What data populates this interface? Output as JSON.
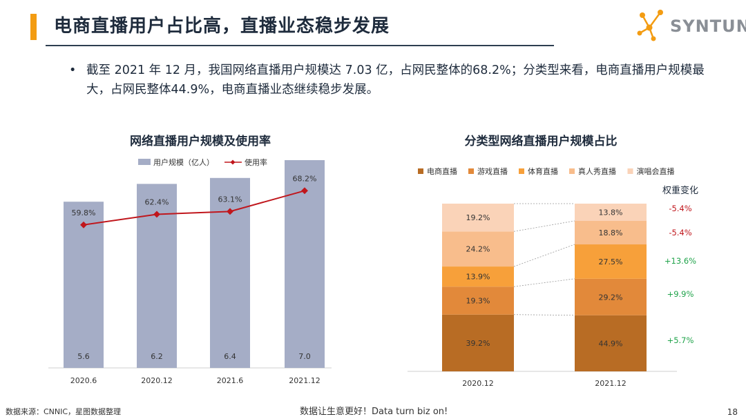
{
  "header": {
    "title": "电商直播用户占比高，直播业态稳步发展",
    "logo_text": "SYNTUN",
    "accent_color": "#f39c12"
  },
  "bullet": {
    "marker": "•",
    "text": "截至 2021 年 12 月，我国网络直播用户规模达 7.03 亿，占网民整体的68.2%；分类型来看，电商直播用户规模最大，占网民整体44.9%，电商直播业态继续稳步发展。"
  },
  "footer": {
    "source": "数据来源：CNNIC，星图数据整理",
    "slogan": "数据让生意更好！Data turn biz on!",
    "page_number": "18"
  },
  "chart_data": [
    {
      "type": "bar",
      "title": "网络直播用户规模及使用率",
      "categories": [
        "2020.6",
        "2020.12",
        "2021.6",
        "2021.12"
      ],
      "series": [
        {
          "name": "用户规模（亿人）",
          "kind": "bar",
          "values": [
            5.6,
            6.2,
            6.4,
            7.0
          ],
          "labels": [
            "5.6",
            "6.2",
            "6.4",
            "7.0"
          ],
          "color": "#a5adc6"
        },
        {
          "name": "使用率",
          "kind": "line",
          "values": [
            59.8,
            62.4,
            63.1,
            68.2
          ],
          "labels": [
            "59.8%",
            "62.4%",
            "63.1%",
            "68.2%"
          ],
          "color": "#c0161c"
        }
      ],
      "legend_position": "top"
    },
    {
      "type": "bar",
      "stacked": true,
      "title": "分类型网络直播用户规模占比",
      "categories": [
        "2020.12",
        "2021.12"
      ],
      "series": [
        {
          "name": "电商直播",
          "values": [
            39.2,
            44.9
          ],
          "labels": [
            "39.2%",
            "44.9%"
          ],
          "color": "#b86c24"
        },
        {
          "name": "游戏直播",
          "values": [
            19.3,
            29.2
          ],
          "labels": [
            "19.3%",
            "29.2%"
          ],
          "color": "#e2893a"
        },
        {
          "name": "体育直播",
          "values": [
            13.9,
            27.5
          ],
          "labels": [
            "13.9%",
            "27.5%"
          ],
          "color": "#f7a03a"
        },
        {
          "name": "真人秀直播",
          "values": [
            24.2,
            18.8
          ],
          "labels": [
            "24.2%",
            "18.8%"
          ],
          "color": "#f8bd8c"
        },
        {
          "name": "演唱会直播",
          "values": [
            19.2,
            13.8
          ],
          "labels": [
            "19.2%",
            "13.8%"
          ],
          "color": "#fad3b8"
        }
      ],
      "change_header": "权重变化",
      "changes": [
        {
          "series": "演唱会直播",
          "label": "-5.4%",
          "color": "#c0161c"
        },
        {
          "series": "真人秀直播",
          "label": "-5.4%",
          "color": "#c0161c"
        },
        {
          "series": "体育直播",
          "label": "+13.6%",
          "color": "#1fa34a"
        },
        {
          "series": "游戏直播",
          "label": "+9.9%",
          "color": "#1fa34a"
        },
        {
          "series": "电商直播",
          "label": "+5.7%",
          "color": "#1fa34a"
        }
      ],
      "legend_position": "top"
    }
  ]
}
